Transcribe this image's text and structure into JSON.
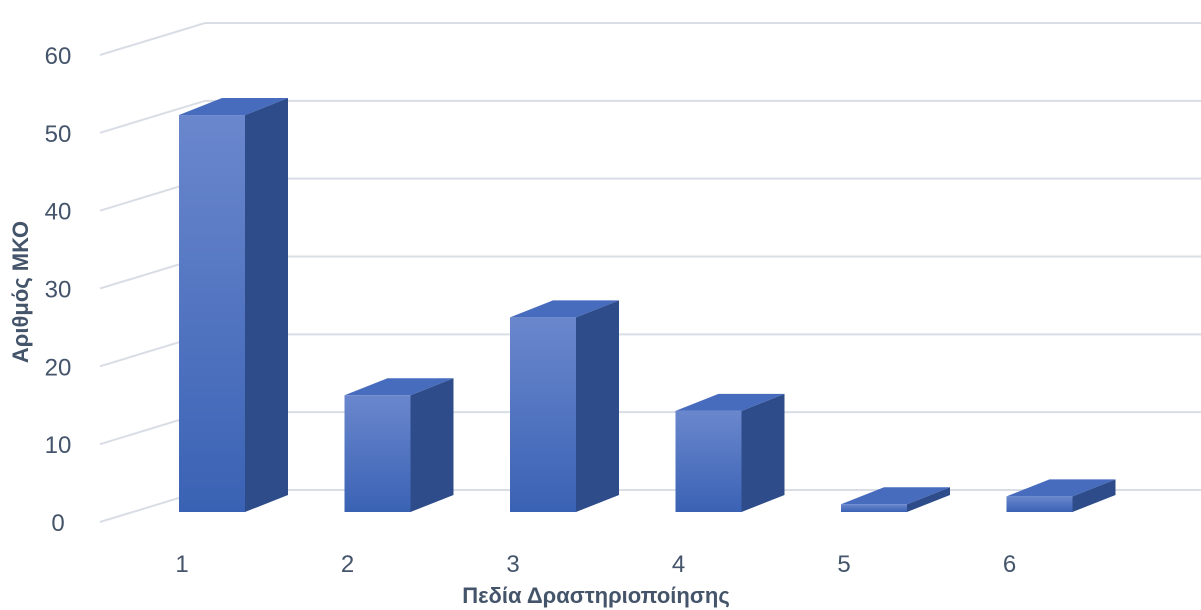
{
  "chart_data": {
    "type": "bar",
    "style": "3d-column",
    "categories": [
      "1",
      "2",
      "3",
      "4",
      "5",
      "6"
    ],
    "values": [
      51,
      15,
      25,
      13,
      1,
      2
    ],
    "title": "",
    "xlabel": "Πεδία Δραστηριοποίησης",
    "ylabel": "Αριθμός ΜΚΟ",
    "ylim": [
      0,
      60
    ],
    "yticks": [
      0,
      10,
      20,
      30,
      40,
      50,
      60
    ],
    "grid": true,
    "legend": "none"
  },
  "colors": {
    "bar_front_top": "#6a87cd",
    "bar_front_bottom": "#3a62b4",
    "bar_side": "#2e4c8a",
    "bar_top": "#476bbd",
    "gridline": "#d9dde5",
    "text": "#44546a"
  }
}
